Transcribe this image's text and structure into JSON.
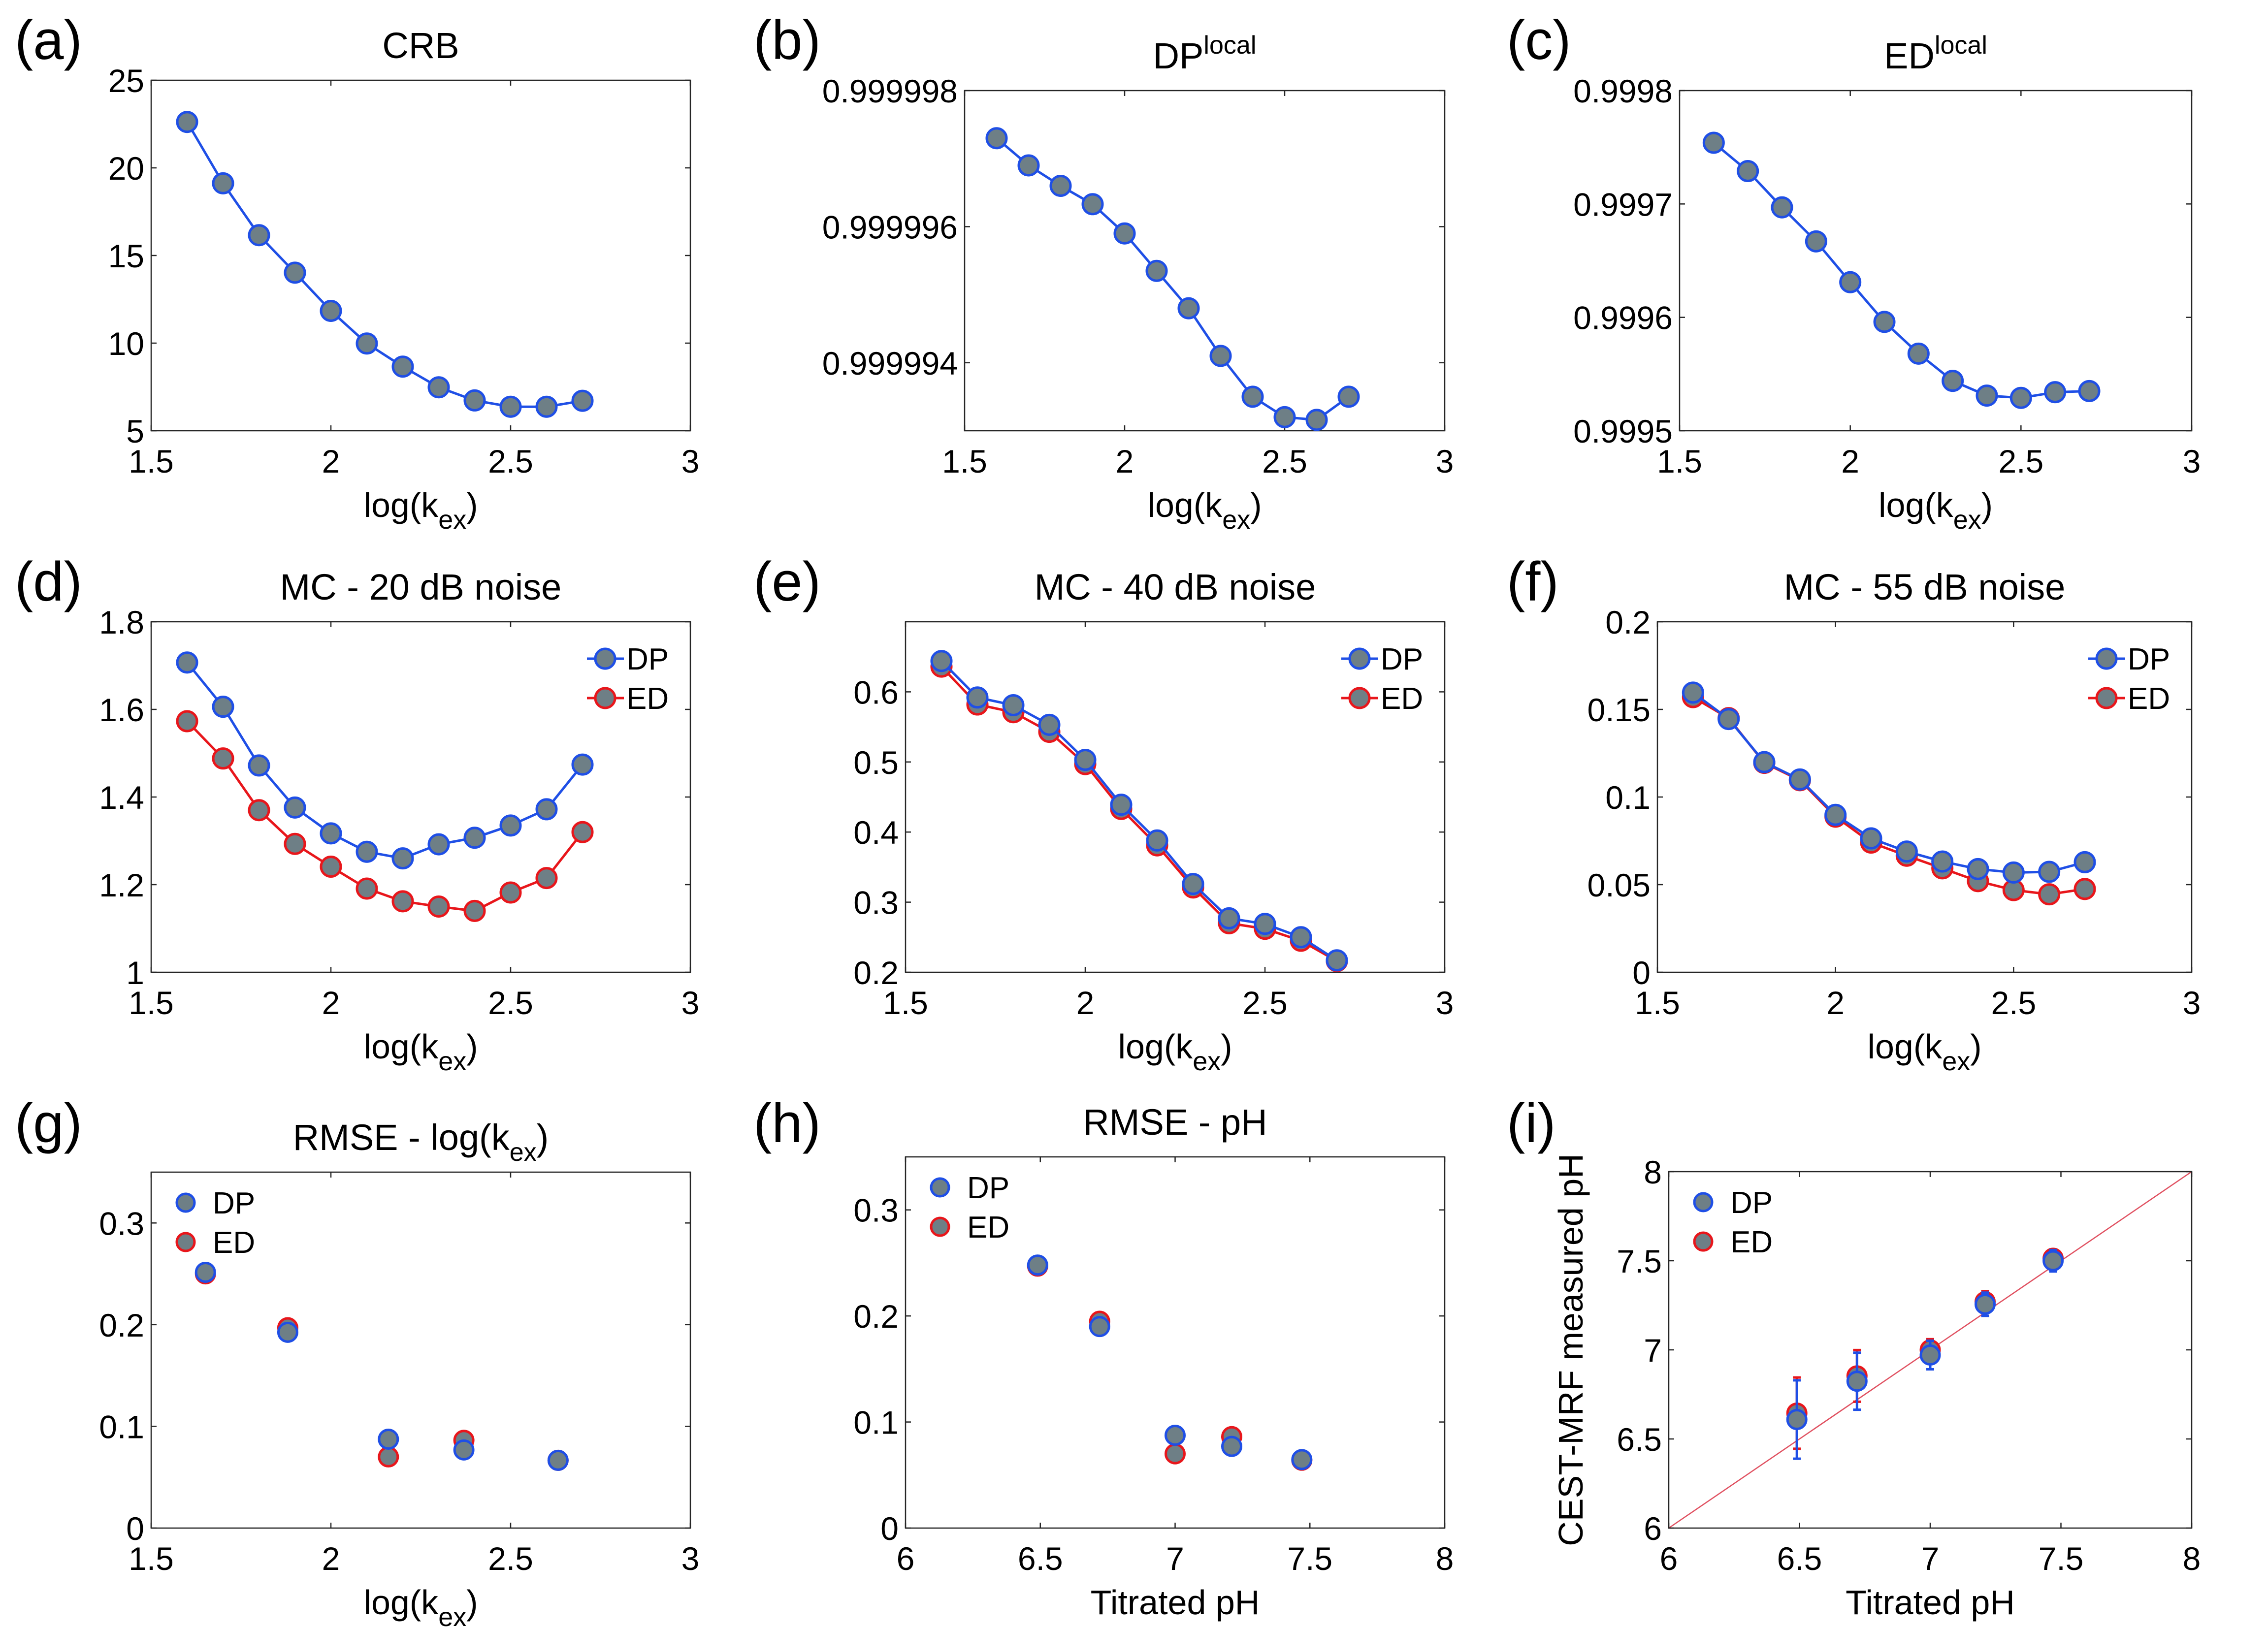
{
  "colors": {
    "dp": "#1f4fe6",
    "ed": "#e8161b",
    "marker_fill": "#6e7f86",
    "identity_line": "#e05060"
  },
  "chart_data": [
    {
      "id": "a",
      "panel_label": "(a)",
      "type": "line",
      "title": "CRB",
      "title_sup": "",
      "xlabel": "log(k",
      "xlabel_sub": "ex",
      "xlabel_end": ")",
      "ylabel": "",
      "xlim": [
        1.5,
        3
      ],
      "ylim": [
        5,
        25
      ],
      "xticks": [
        1.5,
        2,
        2.5,
        3
      ],
      "xtick_labels": [
        "1.5",
        "2",
        "2.5",
        "3"
      ],
      "yticks": [
        5,
        10,
        15,
        20,
        25
      ],
      "ytick_labels": [
        "5",
        "10",
        "15",
        "20",
        "25"
      ],
      "legend": null,
      "grid": false,
      "x": [
        1.6,
        1.7,
        1.8,
        1.9,
        2.0,
        2.1,
        2.2,
        2.3,
        2.4,
        2.5,
        2.6,
        2.7
      ],
      "series": [
        {
          "name": "CRB",
          "color_key": "dp",
          "values": [
            22.62,
            19.12,
            16.16,
            14.02,
            11.84,
            9.98,
            8.66,
            7.48,
            6.73,
            6.37,
            6.37,
            6.71
          ]
        }
      ]
    },
    {
      "id": "b",
      "panel_label": "(b)",
      "type": "line",
      "title": "DP",
      "title_sup": "local",
      "xlabel": "log(k",
      "xlabel_sub": "ex",
      "xlabel_end": ")",
      "ylabel": "",
      "xlim": [
        1.5,
        3
      ],
      "ylim": [
        0.999993,
        0.999998
      ],
      "xticks": [
        1.5,
        2,
        2.5,
        3
      ],
      "xtick_labels": [
        "1.5",
        "2",
        "2.5",
        "3"
      ],
      "yticks": [
        0.999994,
        0.999996,
        0.999998
      ],
      "ytick_labels": [
        "0.999994",
        "0.999996",
        "0.999998"
      ],
      "legend": null,
      "grid": false,
      "x": [
        1.6,
        1.7,
        1.8,
        1.9,
        2.0,
        2.1,
        2.2,
        2.3,
        2.4,
        2.5,
        2.6,
        2.7
      ],
      "series": [
        {
          "name": "DP local",
          "color_key": "dp",
          "values": [
            0.9999973,
            0.9999969,
            0.9999966,
            0.99999633,
            0.9999959,
            0.99999535,
            0.9999948,
            0.9999941,
            0.9999935,
            0.9999932,
            0.99999316,
            0.9999935
          ]
        }
      ]
    },
    {
      "id": "c",
      "panel_label": "(c)",
      "type": "line",
      "title": "ED",
      "title_sup": "local",
      "xlabel": "log(k",
      "xlabel_sub": "ex",
      "xlabel_end": ")",
      "ylabel": "",
      "xlim": [
        1.5,
        3
      ],
      "ylim": [
        0.9995,
        0.9998
      ],
      "xticks": [
        1.5,
        2,
        2.5,
        3
      ],
      "xtick_labels": [
        "1.5",
        "2",
        "2.5",
        "3"
      ],
      "yticks": [
        0.9995,
        0.9996,
        0.9997,
        0.9998
      ],
      "ytick_labels": [
        "0.9995",
        "0.9996",
        "0.9997",
        "0.9998"
      ],
      "legend": null,
      "grid": false,
      "x": [
        1.6,
        1.7,
        1.8,
        1.9,
        2.0,
        2.1,
        2.2,
        2.3,
        2.4,
        2.5,
        2.6,
        2.7
      ],
      "series": [
        {
          "name": "ED local",
          "color_key": "dp",
          "values": [
            0.999754,
            0.999729,
            0.999697,
            0.999667,
            0.999631,
            0.999596,
            0.999568,
            0.999544,
            0.999531,
            0.999529,
            0.999534,
            0.999535
          ]
        }
      ]
    },
    {
      "id": "d",
      "panel_label": "(d)",
      "type": "line",
      "title": "MC - 20 dB noise",
      "title_sup": "",
      "xlabel": "log(k",
      "xlabel_sub": "ex",
      "xlabel_end": ")",
      "ylabel": "",
      "xlim": [
        1.5,
        3
      ],
      "ylim": [
        1,
        1.8
      ],
      "xticks": [
        1.5,
        2,
        2.5,
        3
      ],
      "xtick_labels": [
        "1.5",
        "2",
        "2.5",
        "3"
      ],
      "yticks": [
        1,
        1.2,
        1.4,
        1.6,
        1.8
      ],
      "ytick_labels": [
        "1",
        "1.2",
        "1.4",
        "1.6",
        "1.8"
      ],
      "legend": {
        "placement": "top-right",
        "style": "line"
      },
      "grid": false,
      "x": [
        1.6,
        1.7,
        1.8,
        1.9,
        2.0,
        2.1,
        2.2,
        2.3,
        2.4,
        2.5,
        2.6,
        2.7
      ],
      "series": [
        {
          "name": "DP",
          "color_key": "dp",
          "values": [
            1.707,
            1.606,
            1.472,
            1.376,
            1.317,
            1.275,
            1.26,
            1.292,
            1.307,
            1.335,
            1.372,
            1.474
          ]
        },
        {
          "name": "ED",
          "color_key": "ed",
          "values": [
            1.573,
            1.488,
            1.37,
            1.293,
            1.241,
            1.191,
            1.162,
            1.15,
            1.14,
            1.182,
            1.215,
            1.32
          ]
        }
      ]
    },
    {
      "id": "e",
      "panel_label": "(e)",
      "type": "line",
      "title": "MC - 40 dB noise",
      "title_sup": "",
      "xlabel": "log(k",
      "xlabel_sub": "ex",
      "xlabel_end": ")",
      "ylabel": "",
      "xlim": [
        1.5,
        3
      ],
      "ylim": [
        0.2,
        0.7
      ],
      "xticks": [
        1.5,
        2,
        2.5,
        3
      ],
      "xtick_labels": [
        "1.5",
        "2",
        "2.5",
        "3"
      ],
      "yticks": [
        0.2,
        0.3,
        0.4,
        0.5,
        0.6
      ],
      "ytick_labels": [
        "0.2",
        "0.3",
        "0.4",
        "0.5",
        "0.6"
      ],
      "legend": {
        "placement": "top-right",
        "style": "line"
      },
      "grid": false,
      "x": [
        1.6,
        1.7,
        1.8,
        1.9,
        2.0,
        2.1,
        2.2,
        2.3,
        2.4,
        2.5,
        2.6,
        2.7
      ],
      "series": [
        {
          "name": "ED",
          "color_key": "ed",
          "values": [
            0.636,
            0.582,
            0.571,
            0.543,
            0.497,
            0.433,
            0.381,
            0.321,
            0.27,
            0.262,
            0.245,
            0.216
          ]
        },
        {
          "name": "DP",
          "color_key": "dp",
          "values": [
            0.644,
            0.592,
            0.581,
            0.553,
            0.503,
            0.439,
            0.388,
            0.326,
            0.277,
            0.269,
            0.25,
            0.217
          ]
        }
      ]
    },
    {
      "id": "f",
      "panel_label": "(f)",
      "type": "line",
      "title": "MC - 55 dB noise",
      "title_sup": "",
      "xlabel": "log(k",
      "xlabel_sub": "ex",
      "xlabel_end": ")",
      "ylabel": "",
      "xlim": [
        1.5,
        3
      ],
      "ylim": [
        0,
        0.2
      ],
      "xticks": [
        1.5,
        2,
        2.5,
        3
      ],
      "xtick_labels": [
        "1.5",
        "2",
        "2.5",
        "3"
      ],
      "yticks": [
        0,
        0.05,
        0.1,
        0.15,
        0.2
      ],
      "ytick_labels": [
        "0",
        "0.05",
        "0.1",
        "0.15",
        "0.2"
      ],
      "legend": {
        "placement": "top-right",
        "style": "line"
      },
      "grid": false,
      "x": [
        1.6,
        1.7,
        1.8,
        1.9,
        2.0,
        2.1,
        2.2,
        2.3,
        2.4,
        2.5,
        2.6,
        2.7
      ],
      "series": [
        {
          "name": "ED",
          "color_key": "ed",
          "values": [
            0.157,
            0.145,
            0.1195,
            0.1096,
            0.0888,
            0.074,
            0.0665,
            0.0593,
            0.052,
            0.0469,
            0.0445,
            0.0475
          ]
        },
        {
          "name": "DP",
          "color_key": "dp",
          "values": [
            0.1596,
            0.1445,
            0.1199,
            0.11,
            0.0898,
            0.0764,
            0.0689,
            0.0632,
            0.0589,
            0.0569,
            0.0573,
            0.0628
          ]
        }
      ]
    },
    {
      "id": "g",
      "panel_label": "(g)",
      "type": "scatter",
      "title": "RMSE - log(k",
      "title_sub": "ex",
      "title_end": ")",
      "title_sup": "",
      "xlabel": "log(k",
      "xlabel_sub": "ex",
      "xlabel_end": ")",
      "ylabel": "",
      "xlim": [
        1.5,
        3
      ],
      "ylim": [
        0,
        0.35
      ],
      "xticks": [
        1.5,
        2,
        2.5,
        3
      ],
      "xtick_labels": [
        "1.5",
        "2",
        "2.5",
        "3"
      ],
      "yticks": [
        0,
        0.1,
        0.2,
        0.3
      ],
      "ytick_labels": [
        "0",
        "0.1",
        "0.2",
        "0.3"
      ],
      "legend": {
        "placement": "top-left",
        "style": "marker"
      },
      "grid": false,
      "x": [
        1.651,
        1.88,
        2.16,
        2.37,
        2.632
      ],
      "series": [
        {
          "name": "ED",
          "color_key": "ed",
          "values": [
            0.25,
            0.197,
            0.07,
            0.0863,
            0.0666
          ]
        },
        {
          "name": "DP",
          "color_key": "dp",
          "values": [
            0.2515,
            0.1925,
            0.0874,
            0.0768,
            0.0666
          ]
        }
      ],
      "legend_order": [
        "DP",
        "ED"
      ]
    },
    {
      "id": "h",
      "panel_label": "(h)",
      "type": "scatter",
      "title": "RMSE - pH",
      "title_sup": "",
      "xlabel": "Titrated pH",
      "xlabel_sub": "",
      "xlabel_end": "",
      "ylabel": "",
      "xlim": [
        6,
        8
      ],
      "ylim": [
        0,
        0.35
      ],
      "xticks": [
        6,
        6.5,
        7,
        7.5,
        8
      ],
      "xtick_labels": [
        "6",
        "6.5",
        "7",
        "7.5",
        "8"
      ],
      "yticks": [
        0,
        0.1,
        0.2,
        0.3
      ],
      "ytick_labels": [
        "0",
        "0.1",
        "0.2",
        "0.3"
      ],
      "legend": {
        "placement": "top-left",
        "style": "marker"
      },
      "grid": false,
      "x": [
        6.49,
        6.72,
        7.0,
        7.21,
        7.47
      ],
      "series": [
        {
          "name": "ED",
          "color_key": "ed",
          "values": [
            0.247,
            0.195,
            0.07,
            0.0862,
            0.064
          ]
        },
        {
          "name": "DP",
          "color_key": "dp",
          "values": [
            0.248,
            0.19,
            0.0875,
            0.077,
            0.0646
          ]
        }
      ],
      "legend_order": [
        "DP",
        "ED"
      ]
    },
    {
      "id": "i",
      "panel_label": "(i)",
      "type": "scatter",
      "title": "",
      "title_sup": "",
      "xlabel": "Titrated pH",
      "xlabel_sub": "",
      "xlabel_end": "",
      "ylabel": "CEST-MRF measured pH",
      "xlim": [
        6,
        8
      ],
      "ylim": [
        6,
        8
      ],
      "xticks": [
        6,
        6.5,
        7,
        7.5,
        8
      ],
      "xtick_labels": [
        "6",
        "6.5",
        "7",
        "7.5",
        "8"
      ],
      "yticks": [
        6,
        6.5,
        7,
        7.5,
        8
      ],
      "ytick_labels": [
        "6",
        "6.5",
        "7",
        "7.5",
        "8"
      ],
      "legend": {
        "placement": "top-left",
        "style": "marker"
      },
      "grid": false,
      "identity_line": true,
      "x": [
        6.49,
        6.72,
        7.0,
        7.21,
        7.47
      ],
      "series": [
        {
          "name": "ED",
          "color_key": "ed",
          "values": [
            6.645,
            6.854,
            7.0,
            7.27,
            7.514
          ],
          "errors": [
            0.2,
            0.145,
            0.06,
            0.06,
            0.05
          ]
        },
        {
          "name": "DP",
          "color_key": "dp",
          "values": [
            6.609,
            6.824,
            6.971,
            7.256,
            7.5
          ],
          "errors": [
            0.22,
            0.16,
            0.08,
            0.065,
            0.06
          ]
        }
      ],
      "legend_order": [
        "DP",
        "ED"
      ]
    }
  ]
}
